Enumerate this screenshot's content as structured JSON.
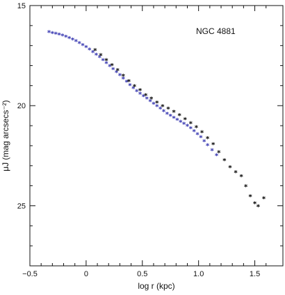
{
  "chart_data": {
    "type": "scatter",
    "title": "",
    "annotation": "NGC 4881",
    "xlabel": "log r (kpc)",
    "ylabel": "μJ (mag arcsecs⁻²)",
    "xlim": [
      -0.5,
      1.75
    ],
    "ylim": [
      28,
      15
    ],
    "y_inverted": true,
    "grid": false,
    "x_ticks": [
      -0.5,
      0,
      0.5,
      1.0,
      1.5
    ],
    "x_tick_labels": [
      "−0.5",
      "0",
      "0.5",
      "1.0",
      "1.5"
    ],
    "y_ticks": [
      15,
      20,
      25
    ],
    "y_tick_labels": [
      "15",
      "20",
      "25"
    ],
    "series": [
      {
        "marker": "asterisk",
        "color": "#4a4ab8",
        "x": [
          -0.33,
          -0.3,
          -0.27,
          -0.24,
          -0.21,
          -0.18,
          -0.15,
          -0.12,
          -0.09,
          -0.06,
          -0.03,
          0.0,
          0.03,
          0.06,
          0.09,
          0.12,
          0.15,
          0.18,
          0.21,
          0.24,
          0.27,
          0.3,
          0.33,
          0.36,
          0.39,
          0.42,
          0.45,
          0.48,
          0.51,
          0.54,
          0.57,
          0.6,
          0.63,
          0.66,
          0.69,
          0.72,
          0.75,
          0.78,
          0.81,
          0.84,
          0.87,
          0.9,
          0.93,
          0.96,
          0.99,
          1.02,
          1.05,
          1.08,
          1.12,
          1.16
        ],
        "y": [
          16.3,
          16.35,
          16.38,
          16.42,
          16.47,
          16.53,
          16.6,
          16.67,
          16.75,
          16.85,
          16.95,
          17.05,
          17.17,
          17.3,
          17.43,
          17.55,
          17.7,
          17.85,
          18.0,
          18.15,
          18.3,
          18.45,
          18.62,
          18.78,
          18.95,
          19.1,
          19.25,
          19.38,
          19.5,
          19.62,
          19.75,
          19.88,
          20.0,
          20.12,
          20.25,
          20.38,
          20.48,
          20.58,
          20.68,
          20.78,
          20.88,
          20.98,
          21.1,
          21.25,
          21.4,
          21.55,
          21.75,
          21.95,
          22.2,
          22.45
        ]
      },
      {
        "marker": "asterisk",
        "color": "#222222",
        "x": [
          0.08,
          0.13,
          0.18,
          0.23,
          0.28,
          0.33,
          0.38,
          0.43,
          0.48,
          0.53,
          0.58,
          0.63,
          0.68,
          0.73,
          0.78,
          0.83,
          0.88,
          0.93,
          0.98,
          1.03,
          1.08,
          1.13,
          1.18,
          1.23,
          1.28,
          1.33,
          1.38,
          1.42,
          1.46,
          1.5,
          1.53,
          1.58
        ],
        "y": [
          17.2,
          17.45,
          17.7,
          17.95,
          18.2,
          18.48,
          18.75,
          19.0,
          19.2,
          19.45,
          19.62,
          19.82,
          20.0,
          20.12,
          20.28,
          20.45,
          20.65,
          20.85,
          21.05,
          21.3,
          21.6,
          21.9,
          22.3,
          22.7,
          23.05,
          23.3,
          23.5,
          24.0,
          24.5,
          24.85,
          25.0,
          24.6
        ]
      }
    ]
  }
}
